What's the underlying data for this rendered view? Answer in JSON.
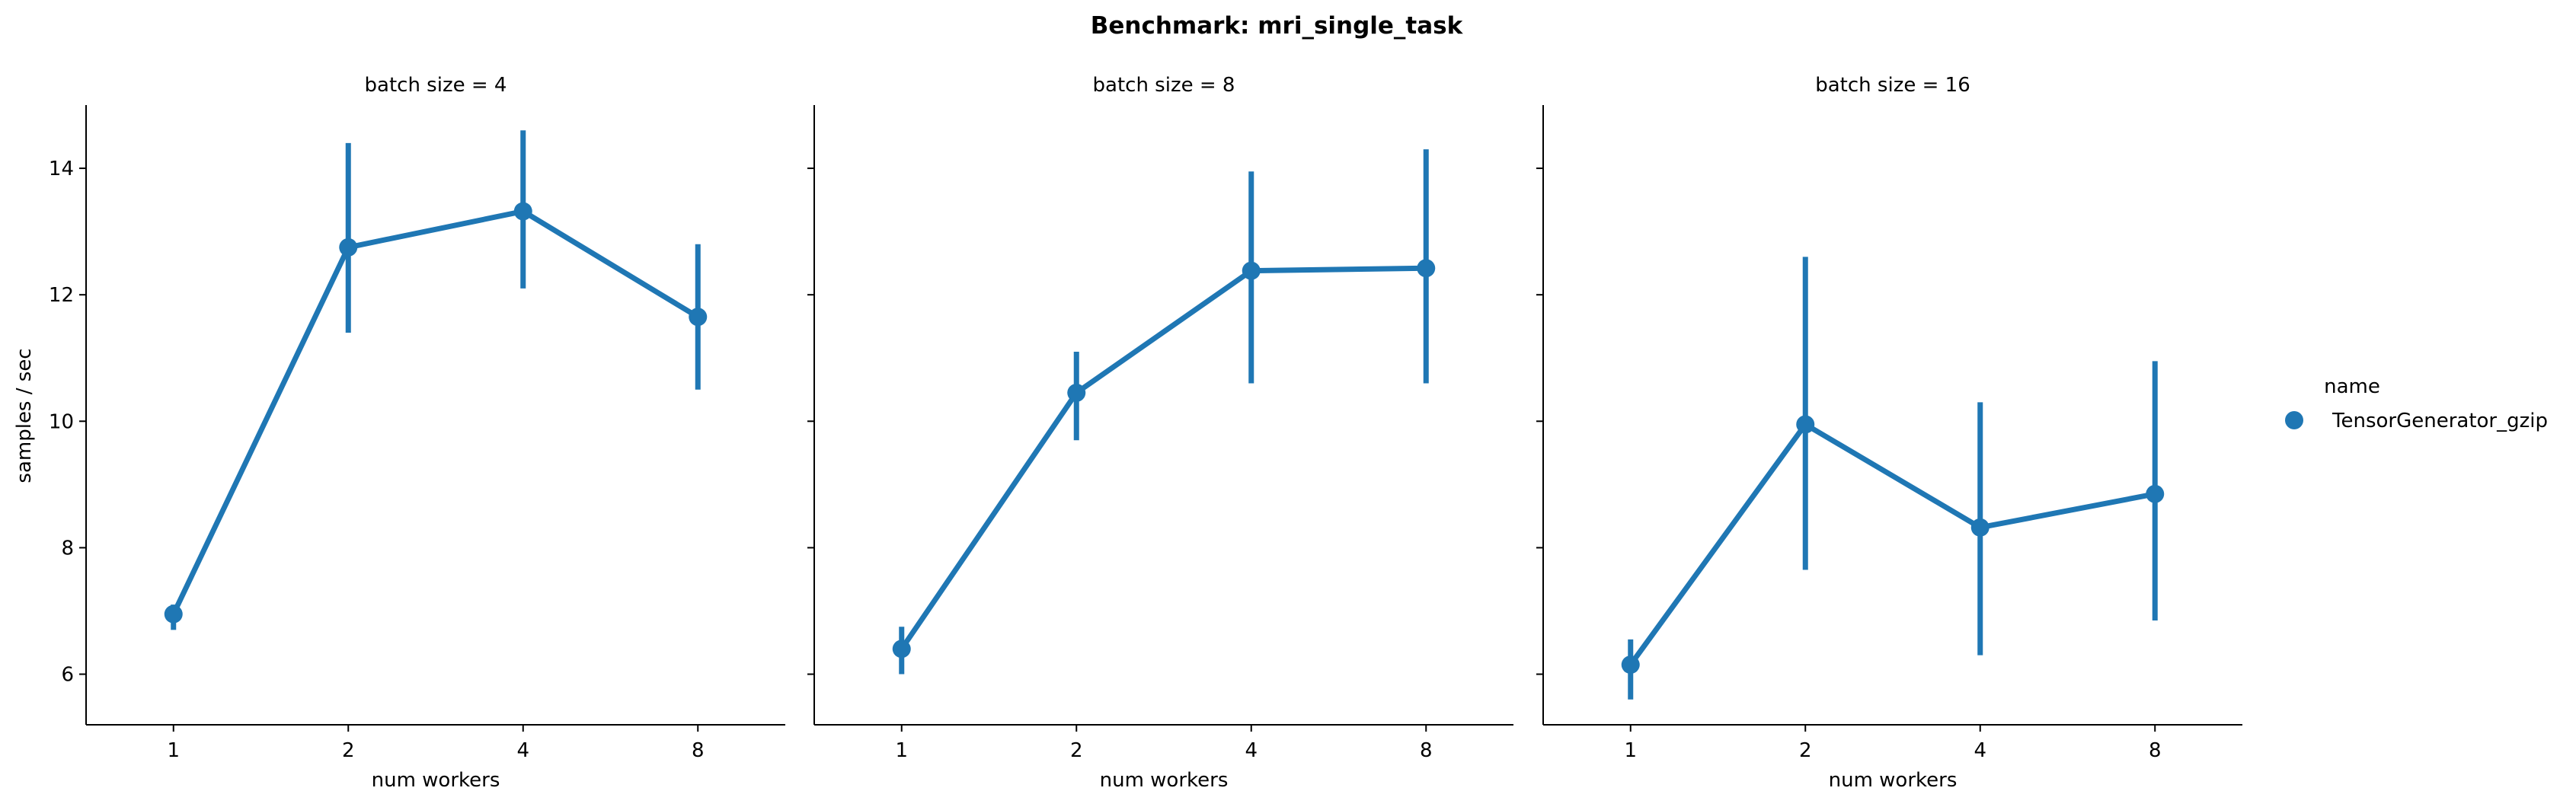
{
  "chart_data": {
    "type": "line",
    "title": "Benchmark: mri_single_task",
    "xlabel": "num workers",
    "ylabel": "samples / sec",
    "categories": [
      "1",
      "2",
      "4",
      "8"
    ],
    "ylim": [
      5.2,
      15.0
    ],
    "yticks": [
      6,
      8,
      10,
      12,
      14
    ],
    "grid": false,
    "legend": {
      "title": "name",
      "placement": "right",
      "entries": [
        "TensorGenerator_gzip"
      ]
    },
    "color": "#1f77b4",
    "facets": [
      {
        "title": "batch size = 4",
        "series": [
          {
            "name": "TensorGenerator_gzip",
            "values": [
              6.95,
              12.75,
              13.32,
              11.65
            ],
            "err_low": [
              6.7,
              11.4,
              12.1,
              10.5
            ],
            "err_high": [
              7.1,
              14.4,
              14.6,
              12.8
            ]
          }
        ]
      },
      {
        "title": "batch size = 8",
        "series": [
          {
            "name": "TensorGenerator_gzip",
            "values": [
              6.4,
              10.45,
              12.38,
              12.42
            ],
            "err_low": [
              6.0,
              9.7,
              10.6,
              10.6
            ],
            "err_high": [
              6.75,
              11.1,
              13.95,
              14.3
            ]
          }
        ]
      },
      {
        "title": "batch size = 16",
        "series": [
          {
            "name": "TensorGenerator_gzip",
            "values": [
              6.15,
              9.95,
              8.32,
              8.85
            ],
            "err_low": [
              5.6,
              7.65,
              6.3,
              6.85
            ],
            "err_high": [
              6.55,
              12.6,
              10.3,
              10.95
            ]
          }
        ]
      }
    ]
  }
}
